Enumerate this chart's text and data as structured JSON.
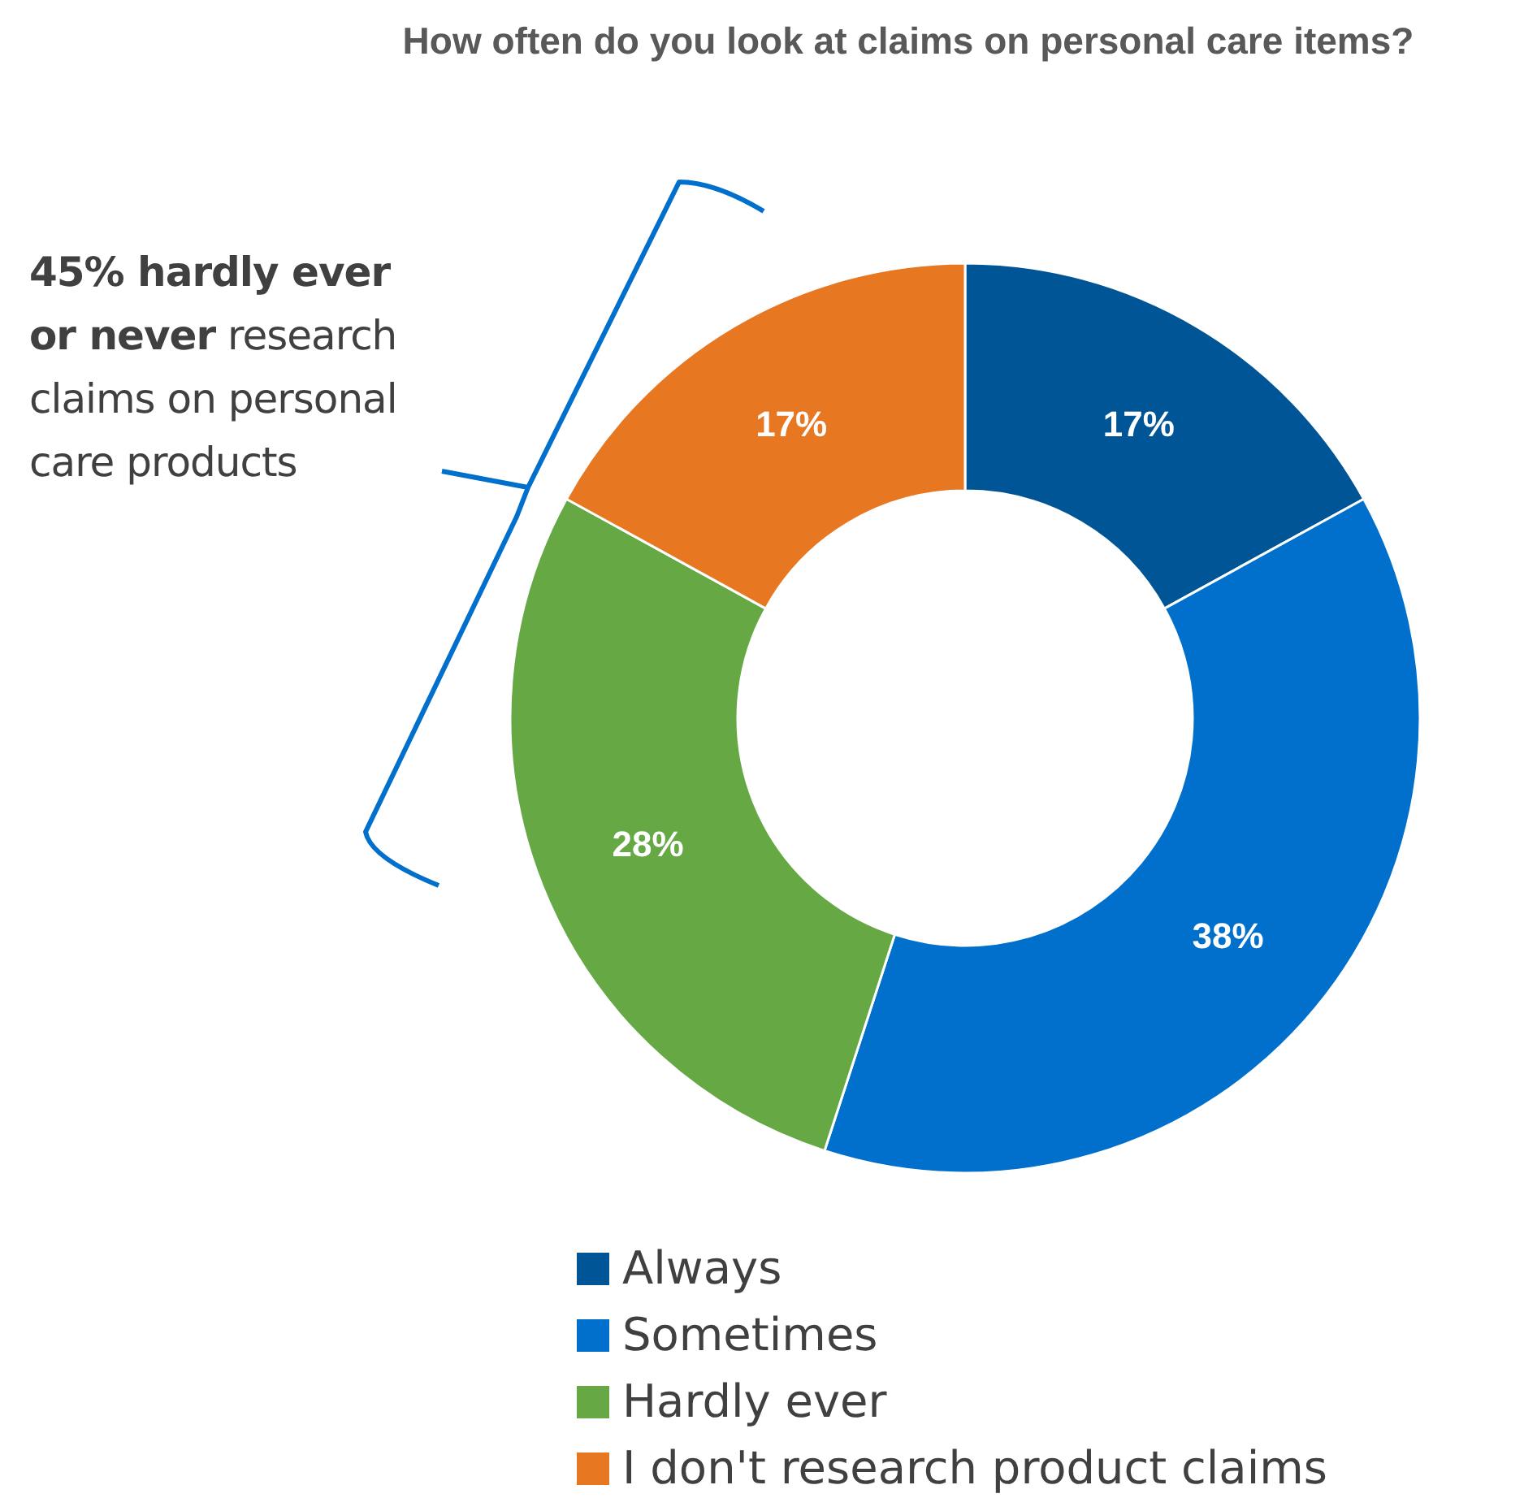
{
  "chart_data": {
    "type": "donut",
    "title": "How often do you look at claims on personal care items?",
    "categories": [
      "Always",
      "Sometimes",
      "Hardly ever",
      "I don't research product claims"
    ],
    "values": [
      17,
      38,
      28,
      17
    ],
    "value_labels": [
      "17%",
      "38%",
      "28%",
      "17%"
    ],
    "colors": [
      "#005596",
      "#0070cc",
      "#65a844",
      "#e87722"
    ],
    "legend": "bottom",
    "annotations": [
      "45% hardly ever or never",
      "research claims on personal care products"
    ]
  }
}
